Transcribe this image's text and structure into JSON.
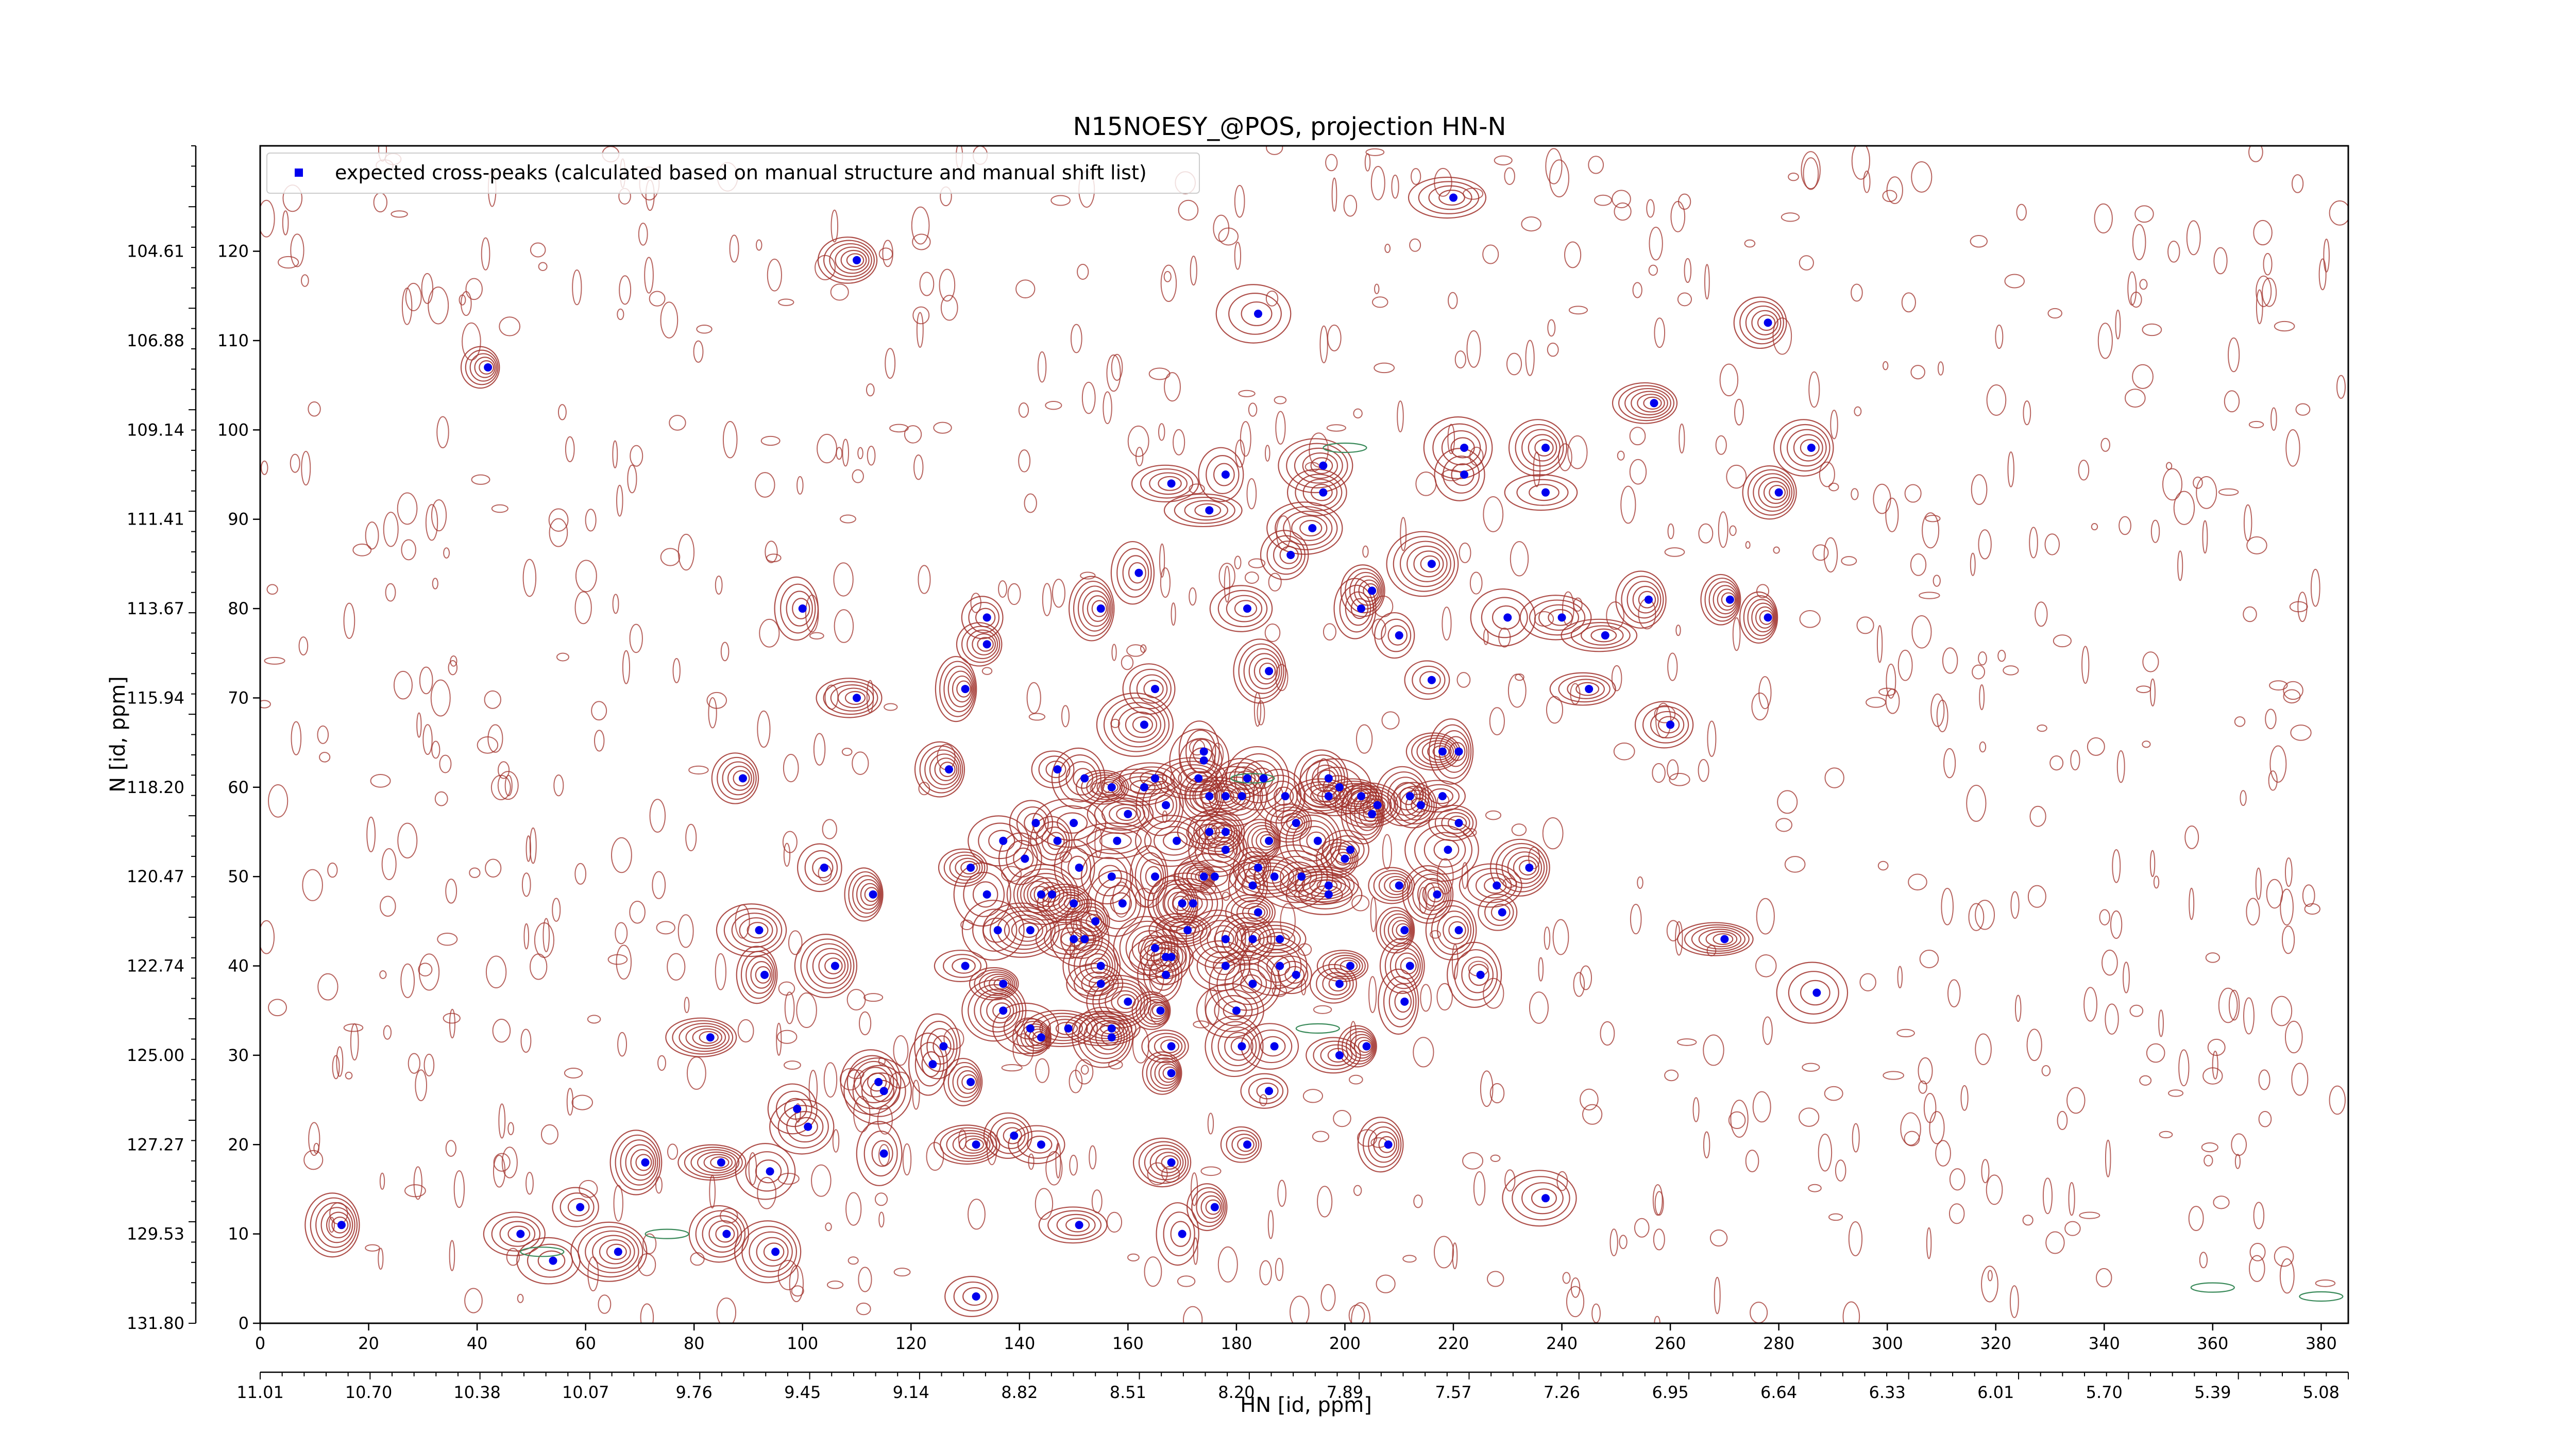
{
  "chart_data": {
    "type": "scatter",
    "title": "N15NOESY_@POS, projection HN-N",
    "xlabel": "HN [id, ppm]",
    "ylabel": "N [id, ppm]",
    "legend": {
      "placement": "top-left",
      "entries": [
        "expected cross-peaks (calculated based on manual structure and manual shift list)"
      ]
    },
    "xlim": [
      0,
      385
    ],
    "ylim": [
      0,
      131.8
    ],
    "x_index_ticks": [
      0,
      20,
      40,
      60,
      80,
      100,
      120,
      140,
      160,
      180,
      200,
      220,
      240,
      260,
      280,
      300,
      320,
      340,
      360,
      380
    ],
    "x_index_tick_labels": [
      "0",
      "20",
      "40",
      "60",
      "80",
      "100",
      "120",
      "140",
      "160",
      "180",
      "200",
      "220",
      "240",
      "260",
      "280",
      "300",
      "320",
      "340",
      "360",
      "380"
    ],
    "x_ppm_tick_labels": [
      "11.01",
      "10.70",
      "10.38",
      "10.07",
      "9.76",
      "9.45",
      "9.14",
      "8.82",
      "8.51",
      "8.20",
      "7.89",
      "7.57",
      "7.26",
      "6.95",
      "6.64",
      "6.33",
      "6.01",
      "5.70",
      "5.39",
      "5.08"
    ],
    "y_index_ticks": [
      0,
      10,
      20,
      30,
      40,
      50,
      60,
      70,
      80,
      90,
      100,
      110,
      120
    ],
    "y_index_tick_labels": [
      "0",
      "10",
      "20",
      "30",
      "40",
      "50",
      "60",
      "70",
      "80",
      "90",
      "100",
      "110",
      "120"
    ],
    "y_ppm_ticks": [
      0,
      10,
      20,
      30,
      40,
      50,
      60,
      70,
      80,
      90,
      100,
      110,
      120
    ],
    "y_ppm_tick_labels": [
      "131.80",
      "129.53",
      "127.27",
      "125.00",
      "122.74",
      "120.47",
      "118.20",
      "115.94",
      "113.67",
      "111.41",
      "109.14",
      "106.88",
      "104.61"
    ],
    "colors": {
      "expected_peak": "#0000ee",
      "positive_contour": "#a0302a",
      "negative_contour": "#3a8a5a",
      "axis": "#000000"
    },
    "series": [
      {
        "name": "expected cross-peaks (calculated based on manual structure and manual shift list)",
        "points": [
          [
            110,
            119
          ],
          [
            184,
            113
          ],
          [
            42,
            107
          ],
          [
            220,
            126
          ],
          [
            278,
            112
          ],
          [
            257,
            103
          ],
          [
            222,
            98
          ],
          [
            237,
            98
          ],
          [
            286,
            98
          ],
          [
            196,
            96
          ],
          [
            168,
            94
          ],
          [
            178,
            95
          ],
          [
            222,
            95
          ],
          [
            196,
            93
          ],
          [
            237,
            93
          ],
          [
            280,
            93
          ],
          [
            175,
            91
          ],
          [
            194,
            89
          ],
          [
            190,
            86
          ],
          [
            216,
            85
          ],
          [
            162,
            84
          ],
          [
            205,
            82
          ],
          [
            230,
            79
          ],
          [
            240,
            79
          ],
          [
            256,
            81
          ],
          [
            271,
            81
          ],
          [
            182,
            80
          ],
          [
            203,
            80
          ],
          [
            155,
            80
          ],
          [
            100,
            80
          ],
          [
            134,
            79
          ],
          [
            278,
            79
          ],
          [
            210,
            77
          ],
          [
            248,
            77
          ],
          [
            134,
            76
          ],
          [
            186,
            73
          ],
          [
            216,
            72
          ],
          [
            130,
            71
          ],
          [
            165,
            71
          ],
          [
            110,
            70
          ],
          [
            245,
            71
          ],
          [
            260,
            67
          ],
          [
            163,
            67
          ],
          [
            174,
            64
          ],
          [
            174,
            63
          ],
          [
            218,
            64
          ],
          [
            221,
            64
          ],
          [
            127,
            62
          ],
          [
            89,
            61
          ],
          [
            147,
            62
          ],
          [
            152,
            61
          ],
          [
            182,
            61
          ],
          [
            185,
            61
          ],
          [
            197,
            61
          ],
          [
            173,
            61
          ],
          [
            165,
            61
          ],
          [
            157,
            60
          ],
          [
            175,
            59
          ],
          [
            163,
            60
          ],
          [
            189,
            59
          ],
          [
            199,
            60
          ],
          [
            178,
            59
          ],
          [
            181,
            59
          ],
          [
            197,
            59
          ],
          [
            203,
            59
          ],
          [
            212,
            59
          ],
          [
            206,
            58
          ],
          [
            214,
            58
          ],
          [
            218,
            59
          ],
          [
            167,
            58
          ],
          [
            150,
            56
          ],
          [
            160,
            57
          ],
          [
            191,
            56
          ],
          [
            205,
            57
          ],
          [
            221,
            56
          ],
          [
            143,
            56
          ],
          [
            175,
            55
          ],
          [
            178,
            55
          ],
          [
            186,
            54
          ],
          [
            137,
            54
          ],
          [
            147,
            54
          ],
          [
            158,
            54
          ],
          [
            169,
            54
          ],
          [
            195,
            54
          ],
          [
            201,
            53
          ],
          [
            219,
            53
          ],
          [
            178,
            53
          ],
          [
            200,
            52
          ],
          [
            141,
            52
          ],
          [
            151,
            51
          ],
          [
            131,
            51
          ],
          [
            104,
            51
          ],
          [
            184,
            51
          ],
          [
            174,
            50
          ],
          [
            157,
            50
          ],
          [
            165,
            50
          ],
          [
            176,
            50
          ],
          [
            187,
            50
          ],
          [
            192,
            50
          ],
          [
            197,
            49
          ],
          [
            210,
            49
          ],
          [
            228,
            49
          ],
          [
            234,
            51
          ],
          [
            217,
            48
          ],
          [
            183,
            49
          ],
          [
            197,
            48
          ],
          [
            113,
            48
          ],
          [
            146,
            48
          ],
          [
            134,
            48
          ],
          [
            144,
            48
          ],
          [
            170,
            47
          ],
          [
            150,
            47
          ],
          [
            159,
            47
          ],
          [
            172,
            47
          ],
          [
            184,
            46
          ],
          [
            229,
            46
          ],
          [
            154,
            45
          ],
          [
            136,
            44
          ],
          [
            142,
            44
          ],
          [
            211,
            44
          ],
          [
            92,
            44
          ],
          [
            171,
            44
          ],
          [
            183,
            43
          ],
          [
            221,
            44
          ],
          [
            178,
            43
          ],
          [
            150,
            43
          ],
          [
            188,
            43
          ],
          [
            152,
            43
          ],
          [
            165,
            42
          ],
          [
            270,
            43
          ],
          [
            167,
            41
          ],
          [
            168,
            41
          ],
          [
            188,
            40
          ],
          [
            106,
            40
          ],
          [
            155,
            40
          ],
          [
            178,
            40
          ],
          [
            201,
            40
          ],
          [
            212,
            40
          ],
          [
            130,
            40
          ],
          [
            93,
            39
          ],
          [
            225,
            39
          ],
          [
            167,
            39
          ],
          [
            191,
            39
          ],
          [
            137,
            38
          ],
          [
            183,
            38
          ],
          [
            199,
            38
          ],
          [
            155,
            38
          ],
          [
            211,
            36
          ],
          [
            287,
            37
          ],
          [
            160,
            36
          ],
          [
            137,
            35
          ],
          [
            166,
            35
          ],
          [
            180,
            35
          ],
          [
            142,
            33
          ],
          [
            149,
            33
          ],
          [
            157,
            33
          ],
          [
            83,
            32
          ],
          [
            144,
            32
          ],
          [
            157,
            32
          ],
          [
            187,
            31
          ],
          [
            204,
            31
          ],
          [
            126,
            31
          ],
          [
            181,
            31
          ],
          [
            168,
            31
          ],
          [
            124,
            29
          ],
          [
            199,
            30
          ],
          [
            168,
            28
          ],
          [
            131,
            27
          ],
          [
            114,
            27
          ],
          [
            115,
            26
          ],
          [
            186,
            26
          ],
          [
            99,
            24
          ],
          [
            101,
            22
          ],
          [
            139,
            21
          ],
          [
            132,
            20
          ],
          [
            182,
            20
          ],
          [
            115,
            19
          ],
          [
            144,
            20
          ],
          [
            168,
            18
          ],
          [
            71,
            18
          ],
          [
            85,
            18
          ],
          [
            94,
            17
          ],
          [
            208,
            20
          ],
          [
            237,
            14
          ],
          [
            59,
            13
          ],
          [
            176,
            13
          ],
          [
            15,
            11
          ],
          [
            151,
            11
          ],
          [
            86,
            10
          ],
          [
            48,
            10
          ],
          [
            170,
            10
          ],
          [
            95,
            8
          ],
          [
            66,
            8
          ],
          [
            54,
            7
          ],
          [
            132,
            3
          ]
        ]
      }
    ]
  }
}
